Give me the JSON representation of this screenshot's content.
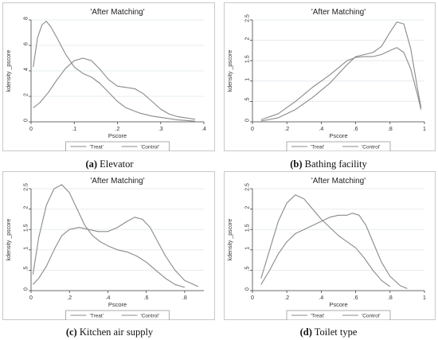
{
  "chart_data": [
    {
      "type": "line",
      "panel_title": "'After Matching'",
      "xlabel": "Pscore",
      "ylabel": "kdensity _pscore",
      "xlim": [
        0,
        0.4
      ],
      "ylim": [
        0,
        8
      ],
      "xticks": [
        0,
        0.1,
        0.2,
        0.3,
        0.4
      ],
      "xtick_labels": [
        "0",
        ".1",
        ".2",
        ".3",
        ".4"
      ],
      "yticks": [
        0,
        2,
        4,
        6,
        8
      ],
      "ytick_labels": [
        "0",
        "2",
        "4",
        "6",
        "8"
      ],
      "legend": [
        "'Treat'",
        "'Control'"
      ],
      "grid": true,
      "series": [
        {
          "name": "'Treat'",
          "x": [
            0.005,
            0.015,
            0.025,
            0.035,
            0.045,
            0.06,
            0.08,
            0.1,
            0.12,
            0.14,
            0.16,
            0.18,
            0.2,
            0.22,
            0.25,
            0.28,
            0.31,
            0.34,
            0.38
          ],
          "y": [
            4.3,
            6.6,
            7.6,
            7.9,
            7.5,
            6.6,
            5.3,
            4.3,
            3.8,
            3.5,
            3.0,
            2.3,
            1.6,
            1.1,
            0.7,
            0.45,
            0.3,
            0.15,
            0.05
          ]
        },
        {
          "name": "'Control'",
          "x": [
            0.005,
            0.02,
            0.04,
            0.06,
            0.08,
            0.1,
            0.12,
            0.14,
            0.16,
            0.18,
            0.2,
            0.22,
            0.24,
            0.26,
            0.28,
            0.3,
            0.32,
            0.34,
            0.38
          ],
          "y": [
            1.1,
            1.5,
            2.3,
            3.3,
            4.2,
            4.8,
            5.0,
            4.8,
            4.1,
            3.3,
            2.8,
            2.7,
            2.6,
            2.2,
            1.6,
            1.0,
            0.6,
            0.4,
            0.2
          ]
        }
      ],
      "caption_label": "(a)",
      "caption_text": "Elevator"
    },
    {
      "type": "line",
      "panel_title": "'After Matching'",
      "xlabel": "Pscore",
      "ylabel": "kdensity _pscore",
      "xlim": [
        0,
        1
      ],
      "ylim": [
        0,
        2.5
      ],
      "xticks": [
        0,
        0.2,
        0.4,
        0.6,
        0.8,
        1
      ],
      "xtick_labels": [
        "0",
        ".2",
        ".4",
        ".6",
        ".8",
        "1"
      ],
      "yticks": [
        0,
        0.5,
        1,
        1.5,
        2,
        2.5
      ],
      "ytick_labels": [
        "0",
        ".5",
        "1",
        "1.5",
        "2",
        "2.5"
      ],
      "legend": [
        "'Treat'",
        "'Control'"
      ],
      "grid": true,
      "series": [
        {
          "name": "'Treat'",
          "x": [
            0.05,
            0.15,
            0.25,
            0.35,
            0.45,
            0.55,
            0.6,
            0.65,
            0.7,
            0.75,
            0.8,
            0.84,
            0.88,
            0.92,
            0.96,
            0.98
          ],
          "y": [
            0.02,
            0.1,
            0.3,
            0.6,
            0.95,
            1.4,
            1.6,
            1.65,
            1.7,
            1.85,
            2.2,
            2.45,
            2.4,
            1.8,
            0.8,
            0.35
          ]
        },
        {
          "name": "'Control'",
          "x": [
            0.05,
            0.15,
            0.25,
            0.35,
            0.45,
            0.55,
            0.6,
            0.65,
            0.7,
            0.75,
            0.8,
            0.84,
            0.88,
            0.92,
            0.96,
            0.98
          ],
          "y": [
            0.05,
            0.2,
            0.5,
            0.85,
            1.15,
            1.5,
            1.58,
            1.6,
            1.6,
            1.65,
            1.75,
            1.82,
            1.7,
            1.3,
            0.65,
            0.3
          ]
        }
      ],
      "caption_label": "(b)",
      "caption_text": "Bathing facility"
    },
    {
      "type": "line",
      "panel_title": "'After Matching'",
      "xlabel": "Pscore",
      "ylabel": "kdensity _pscore",
      "xlim": [
        0,
        0.9
      ],
      "ylim": [
        0,
        2.5
      ],
      "xticks": [
        0,
        0.2,
        0.4,
        0.6,
        0.8
      ],
      "xtick_labels": [
        "0",
        ".2",
        ".4",
        ".6",
        ".8"
      ],
      "yticks": [
        0,
        0.5,
        1,
        1.5,
        2,
        2.5
      ],
      "ytick_labels": [
        "0",
        ".5",
        "1",
        "1.5",
        "2",
        "2.5"
      ],
      "legend": [
        "'Treat'",
        "'Control'"
      ],
      "grid": true,
      "series": [
        {
          "name": "'Treat'",
          "x": [
            0.01,
            0.04,
            0.08,
            0.12,
            0.16,
            0.2,
            0.24,
            0.28,
            0.32,
            0.36,
            0.4,
            0.45,
            0.5,
            0.55,
            0.6,
            0.65,
            0.7,
            0.75,
            0.8
          ],
          "y": [
            0.4,
            1.3,
            2.1,
            2.5,
            2.6,
            2.4,
            2.0,
            1.6,
            1.35,
            1.2,
            1.1,
            1.0,
            0.95,
            0.85,
            0.7,
            0.5,
            0.3,
            0.15,
            0.08
          ]
        },
        {
          "name": "'Control'",
          "x": [
            0.01,
            0.04,
            0.08,
            0.12,
            0.16,
            0.2,
            0.25,
            0.3,
            0.35,
            0.4,
            0.45,
            0.5,
            0.54,
            0.58,
            0.62,
            0.66,
            0.7,
            0.75,
            0.8,
            0.87
          ],
          "y": [
            0.15,
            0.3,
            0.6,
            1.0,
            1.35,
            1.5,
            1.55,
            1.5,
            1.45,
            1.45,
            1.55,
            1.7,
            1.8,
            1.75,
            1.55,
            1.2,
            0.85,
            0.5,
            0.25,
            0.1
          ]
        }
      ],
      "caption_label": "(c)",
      "caption_text": "Kitchen air supply"
    },
    {
      "type": "line",
      "panel_title": "'After Matching'",
      "xlabel": "Pscore",
      "ylabel": "kdensity _pscore",
      "xlim": [
        0,
        1
      ],
      "ylim": [
        0,
        2.5
      ],
      "xticks": [
        0,
        0.2,
        0.4,
        0.6,
        0.8,
        1
      ],
      "xtick_labels": [
        "0",
        ".2",
        ".4",
        ".6",
        ".8",
        "1"
      ],
      "yticks": [
        0,
        0.5,
        1,
        1.5,
        2,
        2.5
      ],
      "ytick_labels": [
        "0",
        ".5",
        "1",
        "1.5",
        "2",
        "2.5"
      ],
      "legend": [
        "'Treat'",
        "'Control'"
      ],
      "grid": true,
      "series": [
        {
          "name": "'Treat'",
          "x": [
            0.05,
            0.1,
            0.15,
            0.2,
            0.25,
            0.3,
            0.35,
            0.4,
            0.45,
            0.5,
            0.55,
            0.6,
            0.65,
            0.7,
            0.75,
            0.8
          ],
          "y": [
            0.3,
            1.0,
            1.7,
            2.15,
            2.35,
            2.25,
            2.0,
            1.75,
            1.55,
            1.35,
            1.2,
            1.05,
            0.8,
            0.5,
            0.25,
            0.1
          ]
        },
        {
          "name": "'Control'",
          "x": [
            0.05,
            0.1,
            0.15,
            0.2,
            0.25,
            0.3,
            0.35,
            0.4,
            0.45,
            0.5,
            0.55,
            0.58,
            0.62,
            0.66,
            0.7,
            0.75,
            0.8,
            0.86,
            0.9
          ],
          "y": [
            0.15,
            0.5,
            0.9,
            1.2,
            1.4,
            1.5,
            1.6,
            1.7,
            1.8,
            1.85,
            1.85,
            1.9,
            1.85,
            1.6,
            1.2,
            0.7,
            0.35,
            0.12,
            0.05
          ]
        }
      ],
      "caption_label": "(d)",
      "caption_text": "Toilet type"
    }
  ]
}
